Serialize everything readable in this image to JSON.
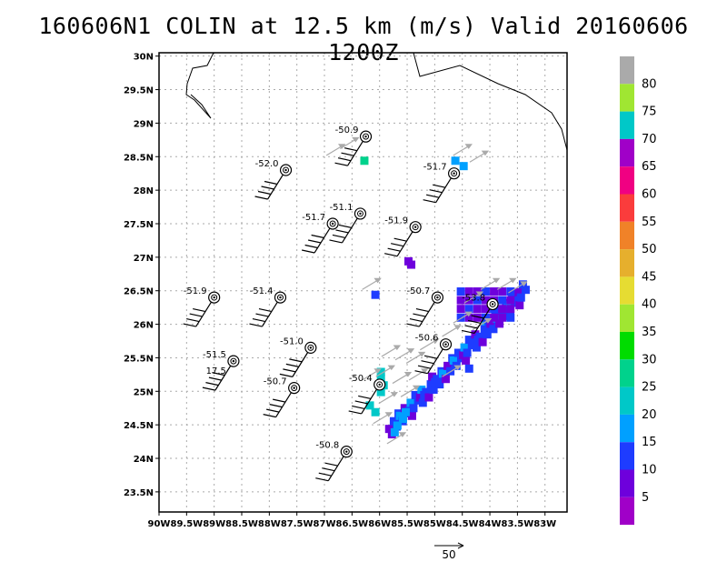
{
  "title": "160606N1 COLIN at 12.5 km (m/s) Valid 20160606 1200Z",
  "lat_labels": [
    "30N",
    "29.5N",
    "29N",
    "28.5N",
    "28N",
    "27.5N",
    "27N",
    "26.5N",
    "26N",
    "25.5N",
    "25N",
    "24.5N",
    "24N",
    "23.5N"
  ],
  "lat_values": [
    30,
    29.5,
    29,
    28.5,
    28,
    27.5,
    27,
    26.5,
    26,
    25.5,
    25,
    24.5,
    24,
    23.5
  ],
  "lon_labels": [
    "90W",
    "89.5W",
    "89W",
    "88.5W",
    "88W",
    "87.5W",
    "87W",
    "86.5W",
    "86W",
    "85.5W",
    "85W",
    "84.5W",
    "84W",
    "83.5W",
    "83W"
  ],
  "lon_values": [
    -90,
    -89.5,
    -89,
    -88.5,
    -88,
    -87.5,
    -87,
    -86.5,
    -86,
    -85.5,
    -85,
    -84.5,
    -84,
    -83.5,
    -83
  ],
  "map_extent": {
    "lon": [
      -90,
      -82.6
    ],
    "lat": [
      23.2,
      30.05
    ]
  },
  "colorbar": {
    "labels": [
      "5",
      "10",
      "15",
      "20",
      "25",
      "30",
      "35",
      "40",
      "45",
      "50",
      "55",
      "60",
      "65",
      "70",
      "75",
      "80"
    ],
    "colors": [
      "#a000c8",
      "#6e00dc",
      "#1e3cff",
      "#00a0ff",
      "#00c8c8",
      "#00d28c",
      "#00dc00",
      "#a0e632",
      "#e6dc32",
      "#e6af2d",
      "#f08228",
      "#fa3c3c",
      "#f00082",
      "#a000c8",
      "#00c8c8",
      "#a0e632",
      "#aaaaaa"
    ]
  },
  "reference_vector_label": "50",
  "stations": [
    {
      "label": "-50.9",
      "lon": -86.25,
      "lat": 28.8
    },
    {
      "label": "-52.0",
      "lon": -87.7,
      "lat": 28.3
    },
    {
      "label": "-51.7",
      "lon": -84.65,
      "lat": 28.25
    },
    {
      "label": "-51.1",
      "lon": -86.35,
      "lat": 27.65
    },
    {
      "label": "-51.7",
      "lon": -86.85,
      "lat": 27.5
    },
    {
      "label": "-51.9",
      "lon": -85.35,
      "lat": 27.45
    },
    {
      "label": "-51.9",
      "lon": -89.0,
      "lat": 26.4
    },
    {
      "label": "-51.4",
      "lon": -87.8,
      "lat": 26.4
    },
    {
      "label": "-50.7",
      "lon": -84.95,
      "lat": 26.4
    },
    {
      "label": "-53.8",
      "lon": -83.95,
      "lat": 26.3
    },
    {
      "label": "-51.0",
      "lon": -87.25,
      "lat": 25.65
    },
    {
      "label": "-50.6",
      "lon": -84.8,
      "lat": 25.7
    },
    {
      "label": "-51.5",
      "lon": -88.65,
      "lat": 25.45
    },
    {
      "label": "17.5",
      "lon": -88.65,
      "lat": 25.45,
      "row": 2
    },
    {
      "label": "-50.4",
      "lon": -86.0,
      "lat": 25.1
    },
    {
      "label": "-50.7",
      "lon": -87.55,
      "lat": 25.05
    },
    {
      "label": "-50.8",
      "lon": -86.6,
      "lat": 24.1
    }
  ]
}
